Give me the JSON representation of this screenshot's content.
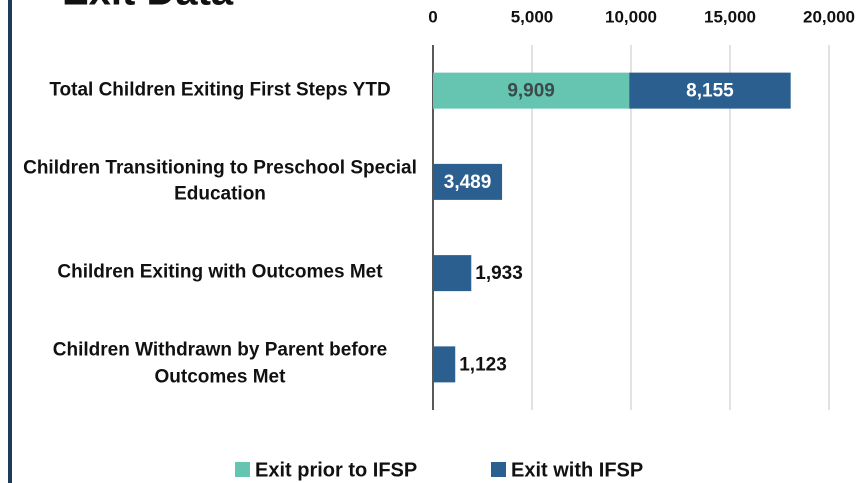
{
  "chart_data": {
    "type": "stacked-bar-horizontal",
    "title": "Exit Data",
    "categories": [
      "Total Children Exiting First Steps YTD",
      "Children Transitioning to Preschool Special Education",
      "Children Exiting with Outcomes Met",
      "Children Withdrawn by Parent before Outcomes Met"
    ],
    "series": [
      {
        "name": "Exit prior to IFSP",
        "color": "#66c5b1",
        "values": [
          9909,
          null,
          null,
          null
        ],
        "value_labels": [
          "9,909",
          null,
          null,
          null
        ]
      },
      {
        "name": "Exit with IFSP",
        "color": "#2a5f8f",
        "values": [
          8155,
          3489,
          1933,
          1123
        ],
        "value_labels": [
          "8,155",
          "3,489",
          "1,933",
          "1,123"
        ]
      }
    ],
    "xlim": [
      0,
      20000
    ],
    "xticks": [
      0,
      {
        "value": 5000,
        "label": "5,000"
      },
      {
        "value": 10000,
        "label": "10,000"
      },
      {
        "value": 15000,
        "label": "15,000"
      },
      {
        "value": 20000,
        "label": "20,000"
      }
    ],
    "grid": true,
    "legend": "bottom"
  }
}
